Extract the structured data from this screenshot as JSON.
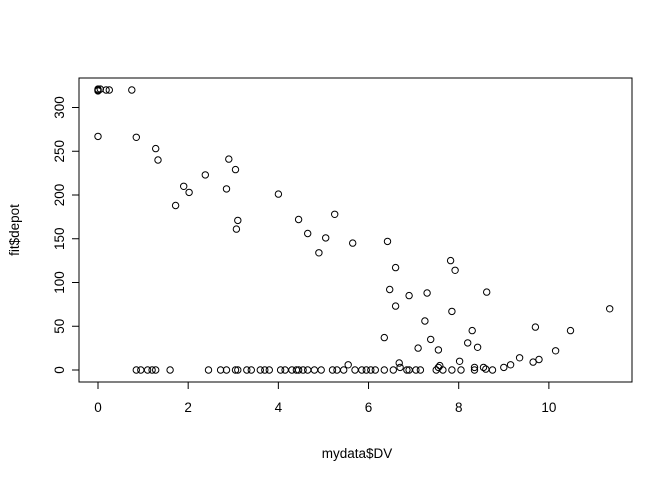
{
  "chart_data": {
    "type": "scatter",
    "title": "",
    "xlabel": "mydata$DV",
    "ylabel": "fit$depot",
    "xlim": [
      0,
      11.4
    ],
    "ylim": [
      0,
      320
    ],
    "xticks": [
      0,
      2,
      4,
      6,
      8,
      10
    ],
    "yticks": [
      0,
      50,
      100,
      150,
      200,
      250,
      300
    ],
    "xtick_labels": [
      "0",
      "2",
      "4",
      "6",
      "8",
      "10"
    ],
    "ytick_labels": [
      "0",
      "50",
      "100",
      "150",
      "200",
      "250",
      "300"
    ],
    "grid": false,
    "legend": "none",
    "marker": "open-circle",
    "color": "#000000",
    "points": [
      [
        0.0,
        321
      ],
      [
        0.0,
        320
      ],
      [
        0.0,
        319
      ],
      [
        0.05,
        321
      ],
      [
        0.18,
        320
      ],
      [
        0.25,
        320
      ],
      [
        0.0,
        267
      ],
      [
        0.75,
        320
      ],
      [
        0.85,
        266
      ],
      [
        1.28,
        253
      ],
      [
        1.33,
        240
      ],
      [
        1.72,
        188
      ],
      [
        1.9,
        210
      ],
      [
        2.02,
        203
      ],
      [
        2.38,
        223
      ],
      [
        2.85,
        207
      ],
      [
        2.9,
        241
      ],
      [
        3.05,
        229
      ],
      [
        3.07,
        161
      ],
      [
        3.1,
        171
      ],
      [
        4.0,
        201
      ],
      [
        4.45,
        172
      ],
      [
        4.65,
        156
      ],
      [
        4.9,
        134
      ],
      [
        5.05,
        151
      ],
      [
        5.25,
        178
      ],
      [
        5.65,
        145
      ],
      [
        6.35,
        37
      ],
      [
        6.42,
        147
      ],
      [
        6.47,
        92
      ],
      [
        6.6,
        117
      ],
      [
        6.6,
        73
      ],
      [
        6.68,
        8
      ],
      [
        6.9,
        85
      ],
      [
        7.1,
        25
      ],
      [
        7.25,
        56
      ],
      [
        7.3,
        88
      ],
      [
        7.38,
        35
      ],
      [
        7.55,
        23
      ],
      [
        7.58,
        5
      ],
      [
        7.82,
        125
      ],
      [
        7.85,
        67
      ],
      [
        7.92,
        114
      ],
      [
        8.02,
        10
      ],
      [
        8.2,
        31
      ],
      [
        8.3,
        45
      ],
      [
        8.35,
        3
      ],
      [
        8.42,
        26
      ],
      [
        8.6,
        1
      ],
      [
        8.62,
        89
      ],
      [
        9.0,
        3
      ],
      [
        9.15,
        6
      ],
      [
        9.35,
        14
      ],
      [
        9.65,
        9
      ],
      [
        9.7,
        49
      ],
      [
        9.78,
        12
      ],
      [
        10.15,
        22
      ],
      [
        10.48,
        45
      ],
      [
        11.35,
        70
      ],
      [
        0.85,
        0
      ],
      [
        0.95,
        0
      ],
      [
        1.1,
        0
      ],
      [
        1.2,
        0
      ],
      [
        1.28,
        0
      ],
      [
        1.6,
        0
      ],
      [
        2.45,
        0
      ],
      [
        2.72,
        0
      ],
      [
        2.85,
        0
      ],
      [
        3.05,
        0
      ],
      [
        3.1,
        0
      ],
      [
        3.3,
        0
      ],
      [
        3.4,
        0
      ],
      [
        3.6,
        0
      ],
      [
        3.7,
        0
      ],
      [
        3.8,
        0
      ],
      [
        4.05,
        0
      ],
      [
        4.15,
        0
      ],
      [
        4.3,
        0
      ],
      [
        4.4,
        0
      ],
      [
        4.45,
        0
      ],
      [
        4.55,
        0
      ],
      [
        4.65,
        0
      ],
      [
        4.8,
        0
      ],
      [
        4.95,
        0
      ],
      [
        5.2,
        0
      ],
      [
        5.3,
        0
      ],
      [
        5.45,
        0
      ],
      [
        5.55,
        6
      ],
      [
        5.7,
        0
      ],
      [
        5.85,
        0
      ],
      [
        5.95,
        0
      ],
      [
        6.05,
        0
      ],
      [
        6.15,
        0
      ],
      [
        6.35,
        0
      ],
      [
        6.55,
        0
      ],
      [
        6.7,
        3
      ],
      [
        6.85,
        0
      ],
      [
        6.9,
        0
      ],
      [
        7.05,
        0
      ],
      [
        7.15,
        0
      ],
      [
        7.5,
        0
      ],
      [
        7.55,
        3
      ],
      [
        7.65,
        0
      ],
      [
        7.85,
        0
      ],
      [
        8.05,
        0
      ],
      [
        8.35,
        0
      ],
      [
        8.55,
        3
      ],
      [
        8.75,
        0
      ]
    ]
  }
}
